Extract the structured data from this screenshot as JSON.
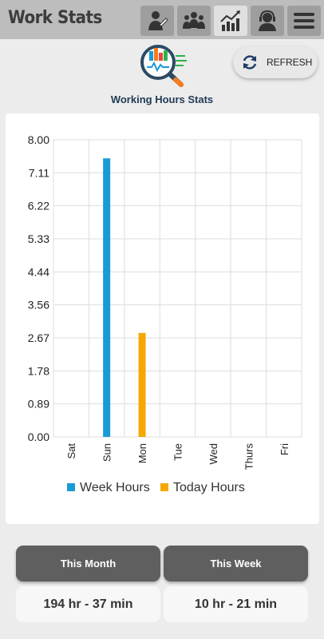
{
  "app": {
    "title": "Work Stats"
  },
  "nav": [
    {
      "icon": "employee-icon",
      "active": false
    },
    {
      "icon": "team-icon",
      "active": false
    },
    {
      "icon": "stats-chart-icon",
      "active": true
    },
    {
      "icon": "support-agent-icon",
      "active": false
    },
    {
      "icon": "menu-icon",
      "active": false
    }
  ],
  "header": {
    "title": "Working Hours Stats",
    "refresh_label": "REFRESH"
  },
  "colors": {
    "week": "#1a9ad6",
    "today": "#f5a800",
    "topbar": "#bdbdbd",
    "button": "#5f5f5f"
  },
  "chart_data": {
    "type": "bar",
    "categories": [
      "Sat",
      "Sun",
      "Mon",
      "Tue",
      "Wed",
      "Thurs",
      "Fri"
    ],
    "ytick_labels": [
      "0.00",
      "0.89",
      "1.78",
      "2.67",
      "3.56",
      "4.44",
      "5.33",
      "6.22",
      "7.11",
      "8.00"
    ],
    "ylim": [
      0,
      8
    ],
    "grid": true,
    "legend_position": "bottom",
    "series": [
      {
        "name": "Week Hours",
        "color": "#1a9ad6",
        "values": [
          0,
          7.5,
          0,
          0,
          0,
          0,
          0
        ]
      },
      {
        "name": "Today Hours",
        "color": "#f5a800",
        "values": [
          0,
          0,
          2.8,
          0,
          0,
          0,
          0
        ]
      }
    ]
  },
  "summary": {
    "month_label": "This Month",
    "week_label": "This Week",
    "month_value": "194 hr - 37 min",
    "week_value": "10 hr - 21 min"
  }
}
